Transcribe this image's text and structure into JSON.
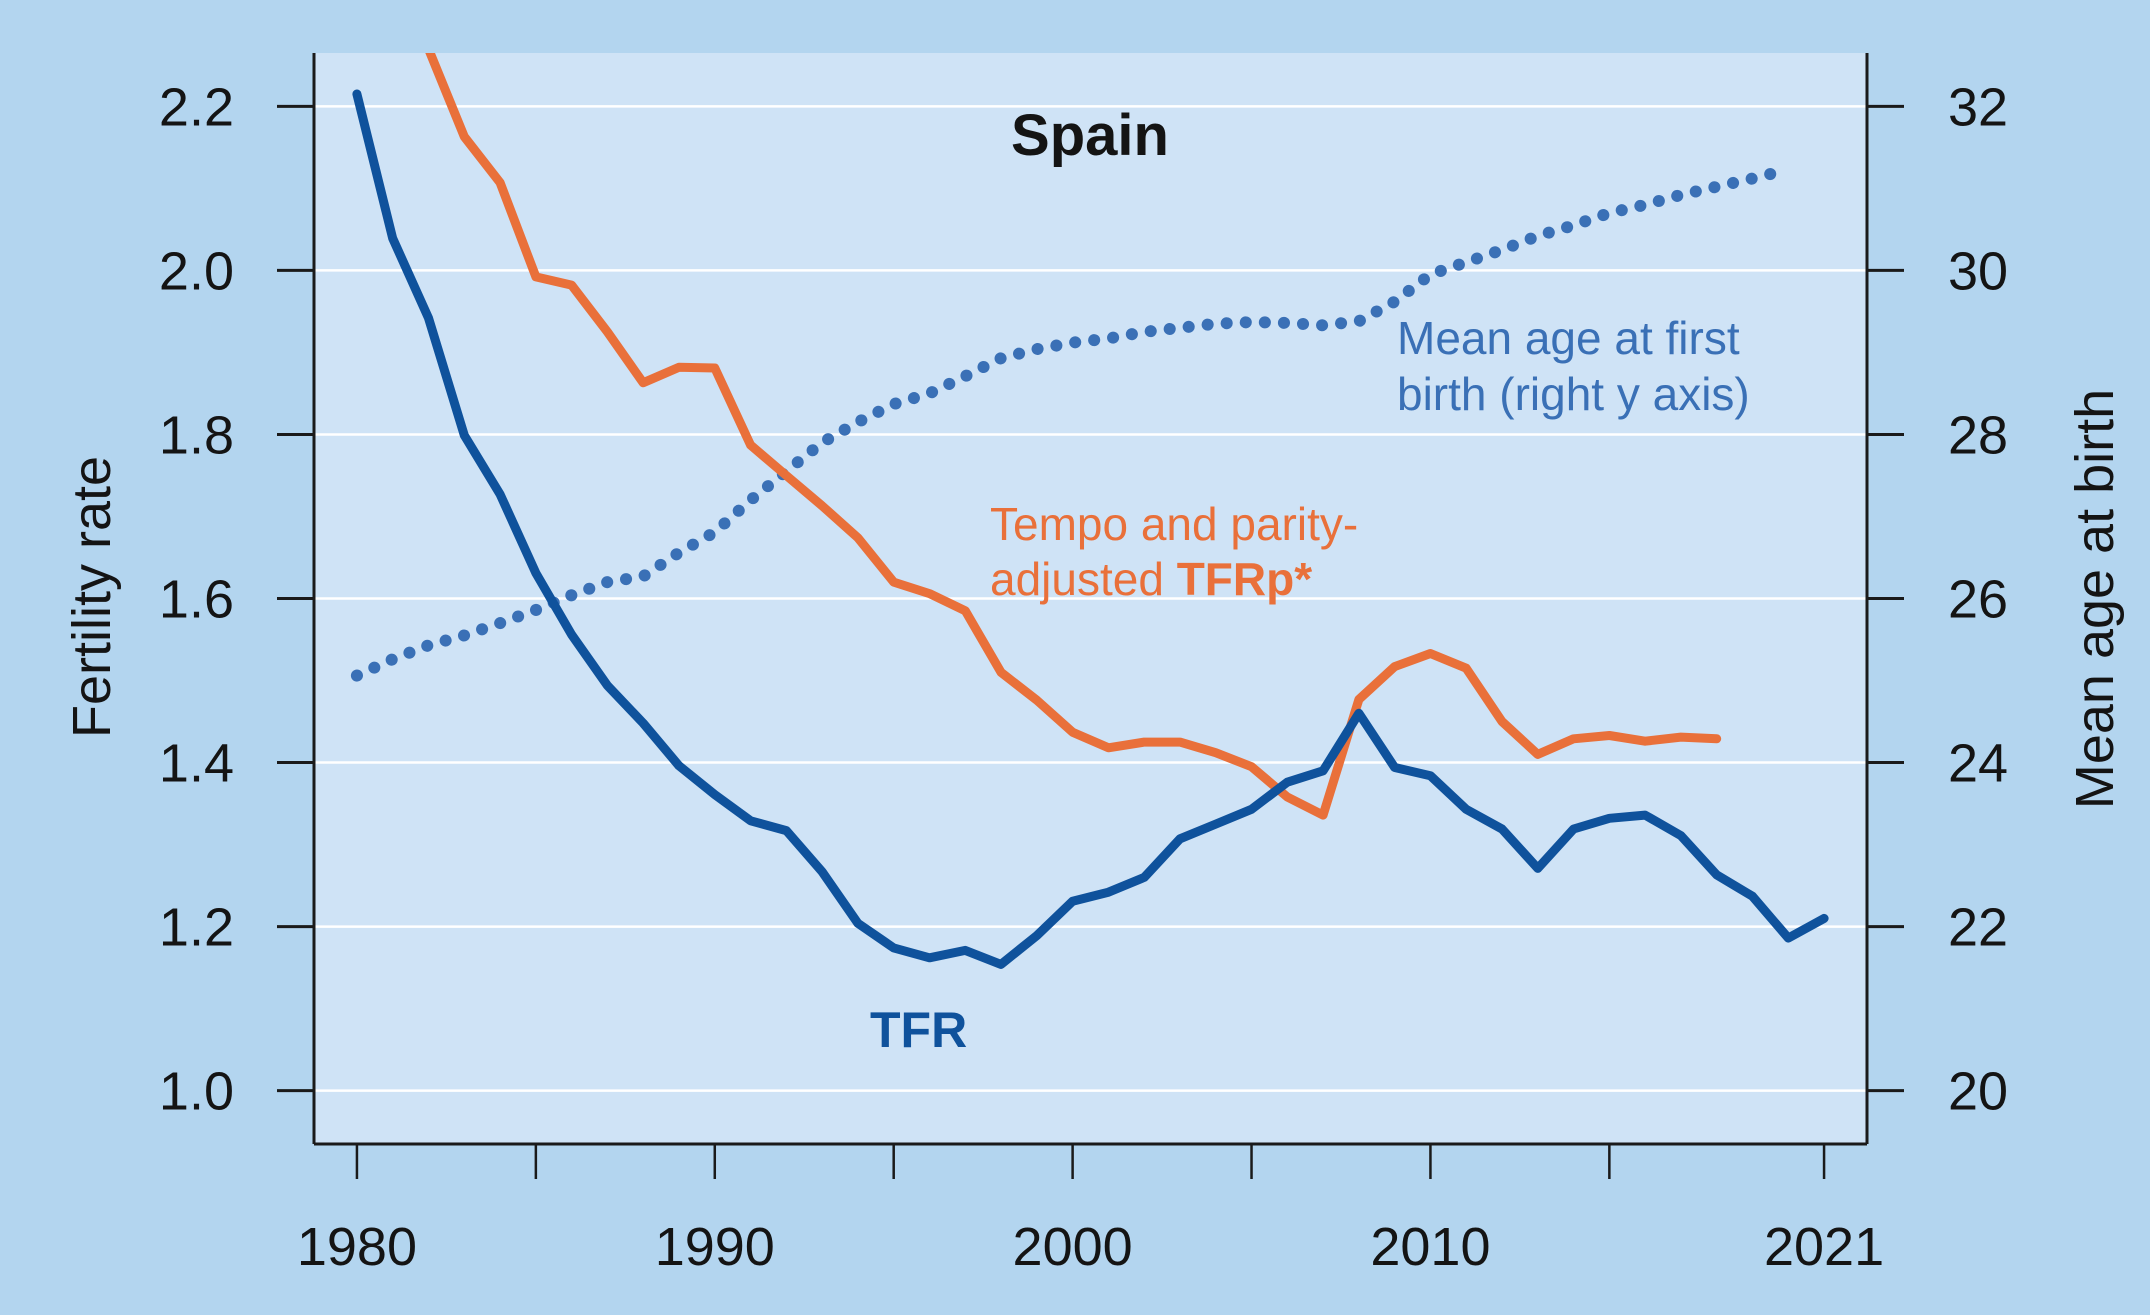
{
  "chart_data": {
    "type": "line",
    "title": "Spain",
    "xlabel": "",
    "ylabel": "Fertility rate",
    "y2label": "Mean age at birth",
    "xlim": [
      1978.8,
      2022.2
    ],
    "ylim": [
      0.935,
      2.265
    ],
    "y2lim": [
      19.35,
      32.65
    ],
    "x_ticks": [
      1980,
      1985,
      1990,
      1995,
      2000,
      2005,
      2010,
      2015,
      2021
    ],
    "x_tick_labels": [
      "1980",
      "",
      "1990",
      "",
      "2000",
      "",
      "2010",
      "",
      "2021"
    ],
    "y_ticks": [
      1.0,
      1.2,
      1.4,
      1.6,
      1.8,
      2.0,
      2.2
    ],
    "y_tick_labels": [
      "1.0",
      "1.2",
      "1.4",
      "1.6",
      "1.8",
      "2.0",
      "2.2"
    ],
    "y2_ticks": [
      20,
      22,
      24,
      26,
      28,
      30,
      32
    ],
    "y2_tick_labels": [
      "20",
      "22",
      "24",
      "26",
      "28",
      "30",
      "32"
    ],
    "grid": true,
    "colors": {
      "background": "#b3d5ef",
      "plot_background": "#cfe3f6",
      "gridline": "#ffffff",
      "axis": "#1a1a1a"
    },
    "series": [
      {
        "name": "TFR",
        "axis": "left",
        "style": "solid",
        "color": "#0f529c",
        "x": [
          1980,
          1981,
          1982,
          1983,
          1984,
          1985,
          1986,
          1987,
          1988,
          1989,
          1990,
          1991,
          1992,
          1993,
          1994,
          1995,
          1996,
          1997,
          1998,
          1999,
          2000,
          2001,
          2002,
          2003,
          2004,
          2005,
          2006,
          2007,
          2008,
          2009,
          2010,
          2011,
          2012,
          2013,
          2014,
          2015,
          2016,
          2017,
          2018,
          2019,
          2020,
          2021
        ],
        "values": [
          2.215,
          2.039,
          1.942,
          1.799,
          1.727,
          1.631,
          1.556,
          1.494,
          1.448,
          1.396,
          1.361,
          1.329,
          1.317,
          1.267,
          1.204,
          1.174,
          1.162,
          1.171,
          1.154,
          1.189,
          1.231,
          1.242,
          1.26,
          1.307,
          1.325,
          1.343,
          1.376,
          1.39,
          1.46,
          1.394,
          1.384,
          1.343,
          1.319,
          1.271,
          1.319,
          1.332,
          1.336,
          1.311,
          1.263,
          1.237,
          1.186,
          1.21
        ]
      },
      {
        "name": "Tempo and parity-adjusted TFRp*",
        "axis": "left",
        "style": "solid",
        "color": "#e9703a",
        "x": [
          1982,
          1983,
          1984,
          1985,
          1986,
          1987,
          1988,
          1989,
          1990,
          1991,
          1992,
          1993,
          1994,
          1995,
          1996,
          1997,
          1998,
          1999,
          2000,
          2001,
          2002,
          2003,
          2004,
          2005,
          2006,
          2007,
          2008,
          2009,
          2010,
          2011,
          2012,
          2013,
          2014,
          2015,
          2016,
          2017,
          2018
        ],
        "values": [
          2.27,
          2.163,
          2.107,
          1.992,
          1.982,
          1.925,
          1.863,
          1.882,
          1.881,
          1.787,
          1.75,
          1.713,
          1.674,
          1.62,
          1.606,
          1.585,
          1.51,
          1.476,
          1.437,
          1.418,
          1.425,
          1.425,
          1.412,
          1.395,
          1.358,
          1.336,
          1.477,
          1.517,
          1.533,
          1.515,
          1.45,
          1.41,
          1.429,
          1.433,
          1.426,
          1.431,
          1.429
        ]
      },
      {
        "name": "Mean age at first birth (right y axis)",
        "axis": "right",
        "style": "dotted",
        "color": "#3a70b6",
        "x": [
          1980,
          1981,
          1982,
          1983,
          1984,
          1985,
          1986,
          1987,
          1988,
          1989,
          1990,
          1991,
          1992,
          1993,
          1994,
          1995,
          1996,
          1997,
          1998,
          1999,
          2000,
          2001,
          2002,
          2003,
          2004,
          2005,
          2006,
          2007,
          2008,
          2009,
          2010,
          2011,
          2012,
          2013,
          2014,
          2015,
          2016,
          2017,
          2018,
          2019,
          2020
        ],
        "values": [
          25.06,
          25.26,
          25.43,
          25.55,
          25.7,
          25.86,
          26.04,
          26.2,
          26.27,
          26.56,
          26.81,
          27.2,
          27.55,
          27.9,
          28.15,
          28.37,
          28.5,
          28.71,
          28.93,
          29.04,
          29.12,
          29.17,
          29.25,
          29.3,
          29.35,
          29.37,
          29.36,
          29.33,
          29.38,
          29.62,
          29.95,
          30.1,
          30.25,
          30.42,
          30.55,
          30.7,
          30.8,
          30.92,
          31.02,
          31.12,
          31.23
        ]
      }
    ],
    "annotations": {
      "tfr_label": "TFR",
      "tfrp_line1": "Tempo and parity-",
      "tfrp_line2_prefix": "adjusted ",
      "tfrp_line2_bold": "TFRp*",
      "age_line1": "Mean age at first",
      "age_line2": "birth (right y axis)"
    }
  }
}
